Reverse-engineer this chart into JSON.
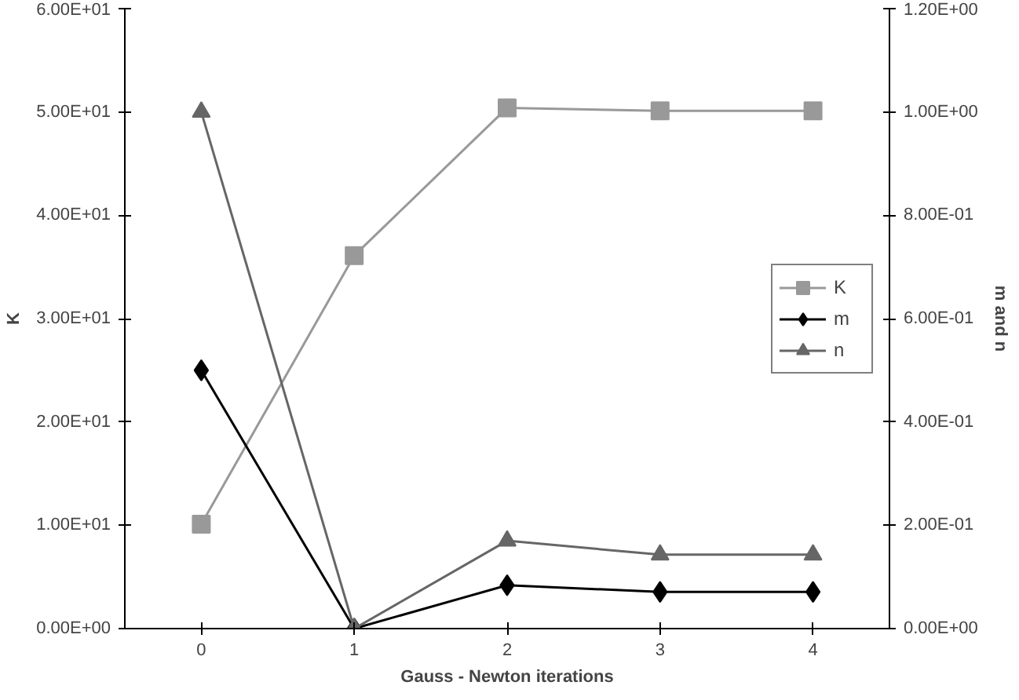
{
  "chart_data": {
    "type": "line",
    "xlabel": "Gauss - Newton iterations",
    "ylabel": "K",
    "y2label": "m and n",
    "categories": [
      "0",
      "1",
      "2",
      "3",
      "4"
    ],
    "series": [
      {
        "name": "K",
        "color": "#999999",
        "marker": "square",
        "values": [
          10.1,
          36.1,
          50.4,
          50.1,
          50.1
        ]
      },
      {
        "name": "m",
        "color": "#000000",
        "marker": "diamond",
        "axis": "y2",
        "values": [
          0.5,
          0,
          0.084,
          0.071,
          0.071
        ]
      },
      {
        "name": "n",
        "color": "#666666",
        "marker": "triangle",
        "axis": "y2",
        "values": [
          1.0,
          0,
          0.17,
          0.143,
          0.143
        ]
      }
    ],
    "ylim": [
      0,
      60
    ],
    "yticks": [
      {
        "value": 0,
        "label": "0.00E+00"
      },
      {
        "value": 10,
        "label": "1.00E+01"
      },
      {
        "value": 20,
        "label": "2.00E+01"
      },
      {
        "value": 30,
        "label": "3.00E+01"
      },
      {
        "value": 40,
        "label": "4.00E+01"
      },
      {
        "value": 50,
        "label": "5.00E+01"
      },
      {
        "value": 60,
        "label": "6.00E+01"
      }
    ],
    "y2lim": [
      0,
      1.2
    ],
    "y2ticks": [
      {
        "value": 0,
        "label": "0.00E+00"
      },
      {
        "value": 0.2,
        "label": "2.00E-01"
      },
      {
        "value": 0.4,
        "label": "4.00E-01"
      },
      {
        "value": 0.6,
        "label": "6.00E-01"
      },
      {
        "value": 0.8,
        "label": "8.00E-01"
      },
      {
        "value": 1.0,
        "label": "1.00E+00"
      },
      {
        "value": 1.2,
        "label": "1.20E+00"
      }
    ],
    "grid": false,
    "legend": "right"
  }
}
